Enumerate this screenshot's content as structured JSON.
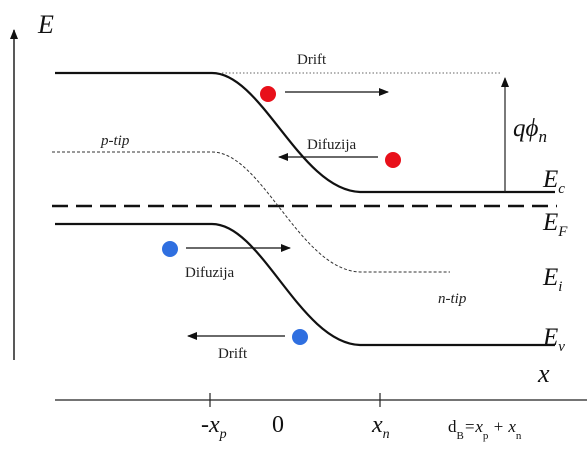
{
  "axes": {
    "y_label": "E",
    "x_label": "x"
  },
  "annotations": {
    "drift_top": "Drift",
    "difuzija_top": "Difuzija",
    "p_tip": "p-tip",
    "difuzija_bottom": "Difuzija",
    "n_tip": "n-tip",
    "drift_bottom": "Drift",
    "q_phi": "qϕ",
    "q_phi_sub": "n"
  },
  "bands": {
    "ec": {
      "main": "E",
      "sub": "c"
    },
    "ef": {
      "main": "E",
      "sub": "F"
    },
    "ei": {
      "main": "E",
      "sub": "i"
    },
    "ev": {
      "main": "E",
      "sub": "v"
    }
  },
  "ticks": {
    "neg_xp": {
      "main": "-x",
      "sub": "p"
    },
    "zero": "0",
    "xn": {
      "main": "x",
      "sub": "n"
    }
  },
  "formula": {
    "d": "d",
    "d_sub": "B",
    "eq": "=x",
    "p_sub": "p",
    "plus": " + x",
    "n_sub": "n"
  },
  "colors": {
    "electron": "#e8101a",
    "hole": "#2f6fe0",
    "line": "#111111"
  }
}
